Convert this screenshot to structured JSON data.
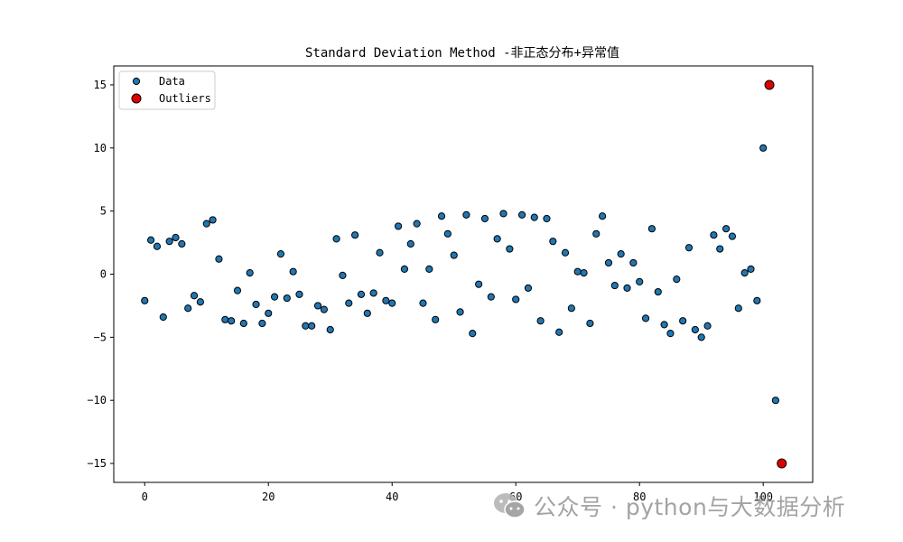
{
  "chart_data": {
    "type": "scatter",
    "title": "Standard Deviation Method -非正态分布+异常值",
    "xlabel": "",
    "ylabel": "",
    "xlim": [
      -5,
      108
    ],
    "ylim": [
      -16.5,
      16.5
    ],
    "x_ticks": [
      0,
      20,
      40,
      60,
      80,
      100
    ],
    "y_ticks": [
      -15,
      -10,
      -5,
      0,
      5,
      10,
      15
    ],
    "legend": {
      "location": "upper-left"
    },
    "grid": false,
    "series": [
      {
        "name": "Data",
        "color": "#1f77b4",
        "points": [
          [
            0,
            -2.1
          ],
          [
            1,
            2.7
          ],
          [
            2,
            2.2
          ],
          [
            3,
            -3.4
          ],
          [
            4,
            2.6
          ],
          [
            5,
            2.9
          ],
          [
            6,
            2.4
          ],
          [
            7,
            -2.7
          ],
          [
            8,
            -1.7
          ],
          [
            9,
            -2.2
          ],
          [
            10,
            4.0
          ],
          [
            11,
            4.3
          ],
          [
            12,
            1.2
          ],
          [
            13,
            -3.6
          ],
          [
            14,
            -3.7
          ],
          [
            15,
            -1.3
          ],
          [
            16,
            -3.9
          ],
          [
            17,
            0.1
          ],
          [
            18,
            -2.4
          ],
          [
            19,
            -3.9
          ],
          [
            20,
            -3.1
          ],
          [
            21,
            -1.8
          ],
          [
            22,
            1.6
          ],
          [
            23,
            -1.9
          ],
          [
            24,
            0.2
          ],
          [
            25,
            -1.6
          ],
          [
            26,
            -4.1
          ],
          [
            27,
            -4.1
          ],
          [
            28,
            -2.5
          ],
          [
            29,
            -2.8
          ],
          [
            30,
            -4.4
          ],
          [
            31,
            2.8
          ],
          [
            32,
            -0.1
          ],
          [
            33,
            -2.3
          ],
          [
            34,
            3.1
          ],
          [
            35,
            -1.6
          ],
          [
            36,
            -3.1
          ],
          [
            37,
            -1.5
          ],
          [
            38,
            1.7
          ],
          [
            39,
            -2.1
          ],
          [
            40,
            -2.3
          ],
          [
            41,
            3.8
          ],
          [
            42,
            0.4
          ],
          [
            43,
            2.4
          ],
          [
            44,
            4.0
          ],
          [
            45,
            -2.3
          ],
          [
            46,
            0.4
          ],
          [
            47,
            -3.6
          ],
          [
            48,
            4.6
          ],
          [
            49,
            3.2
          ],
          [
            50,
            1.5
          ],
          [
            51,
            -3.0
          ],
          [
            52,
            4.7
          ],
          [
            53,
            -4.7
          ],
          [
            54,
            -0.8
          ],
          [
            55,
            4.4
          ],
          [
            56,
            -1.8
          ],
          [
            57,
            2.8
          ],
          [
            58,
            4.8
          ],
          [
            59,
            2.0
          ],
          [
            60,
            -2.0
          ],
          [
            61,
            4.7
          ],
          [
            62,
            -1.1
          ],
          [
            63,
            4.5
          ],
          [
            64,
            -3.7
          ],
          [
            65,
            4.4
          ],
          [
            66,
            2.6
          ],
          [
            67,
            -4.6
          ],
          [
            68,
            1.7
          ],
          [
            69,
            -2.7
          ],
          [
            70,
            0.2
          ],
          [
            71,
            0.1
          ],
          [
            72,
            -3.9
          ],
          [
            73,
            3.2
          ],
          [
            74,
            4.6
          ],
          [
            75,
            0.9
          ],
          [
            76,
            -0.9
          ],
          [
            77,
            1.6
          ],
          [
            78,
            -1.1
          ],
          [
            79,
            0.9
          ],
          [
            80,
            -0.6
          ],
          [
            81,
            -3.5
          ],
          [
            82,
            3.6
          ],
          [
            83,
            -1.4
          ],
          [
            84,
            -4.0
          ],
          [
            85,
            -4.7
          ],
          [
            86,
            -0.4
          ],
          [
            87,
            -3.7
          ],
          [
            88,
            2.1
          ],
          [
            89,
            -4.4
          ],
          [
            90,
            -5.0
          ],
          [
            91,
            -4.1
          ],
          [
            92,
            3.1
          ],
          [
            93,
            2.0
          ],
          [
            94,
            3.6
          ],
          [
            95,
            3.0
          ],
          [
            96,
            -2.7
          ],
          [
            97,
            0.1
          ],
          [
            98,
            0.4
          ],
          [
            99,
            -2.1
          ],
          [
            100,
            10.0
          ],
          [
            102,
            -10.0
          ]
        ]
      },
      {
        "name": "Outliers",
        "color": "#e00000",
        "points": [
          [
            101,
            15.0
          ],
          [
            103,
            -15.0
          ]
        ]
      }
    ]
  },
  "watermark": {
    "text": "公众号 · python与大数据分析",
    "icon": "wechat-icon"
  }
}
